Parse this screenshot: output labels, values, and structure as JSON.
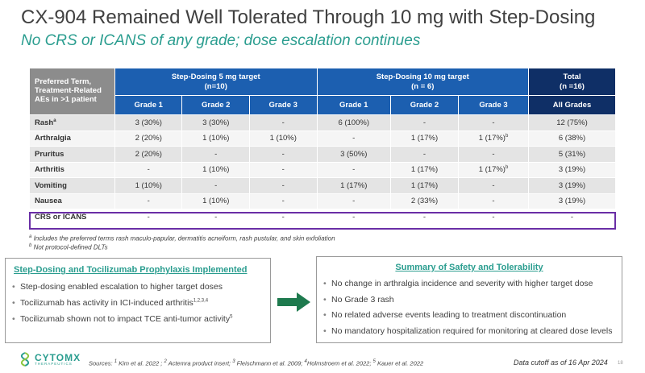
{
  "header": {
    "title": "CX-904 Remained Well Tolerated Through 10 mg with Step-Dosing",
    "subtitle": "No CRS or ICANS of any grade; dose escalation continues"
  },
  "table": {
    "corner": "Preferred Term, Treatment-Related AEs in >1 patient",
    "group1": {
      "line1": "Step-Dosing 5 mg target",
      "line2": "(n=10)"
    },
    "group2": {
      "line1": "Step-Dosing 10 mg target",
      "line2": "(n = 6)"
    },
    "total": {
      "line1": "Total",
      "line2": "(n =16)"
    },
    "grades": [
      "Grade 1",
      "Grade 2",
      "Grade 3",
      "Grade 1",
      "Grade 2",
      "Grade 3",
      "All Grades"
    ],
    "rows": [
      {
        "term": "Rash",
        "sup": "a",
        "cells": [
          "3 (30%)",
          "3 (30%)",
          "-",
          "6 (100%)",
          "-",
          "-",
          "12 (75%)"
        ]
      },
      {
        "term": "Arthralgia",
        "sup": "",
        "cells": [
          "2 (20%)",
          "1 (10%)",
          "1 (10%)",
          "-",
          "1 (17%)",
          "1 (17%)",
          "6 (38%)"
        ],
        "cell_sups": [
          "",
          "",
          "",
          "",
          "",
          "b",
          ""
        ]
      },
      {
        "term": "Pruritus",
        "sup": "",
        "cells": [
          "2 (20%)",
          "-",
          "-",
          "3 (50%)",
          "-",
          "-",
          "5 (31%)"
        ]
      },
      {
        "term": "Arthritis",
        "sup": "",
        "cells": [
          "-",
          "1 (10%)",
          "-",
          "-",
          "1 (17%)",
          "1 (17%)",
          "3 (19%)"
        ],
        "cell_sups": [
          "",
          "",
          "",
          "",
          "",
          "b",
          ""
        ]
      },
      {
        "term": "Vomiting",
        "sup": "",
        "cells": [
          "1 (10%)",
          "-",
          "-",
          "1 (17%)",
          "1 (17%)",
          "-",
          "3 (19%)"
        ]
      },
      {
        "term": "Nausea",
        "sup": "",
        "cells": [
          "-",
          "1 (10%)",
          "-",
          "-",
          "2 (33%)",
          "-",
          "3 (19%)"
        ]
      },
      {
        "term": "CRS or ICANS",
        "sup": "",
        "cells": [
          "-",
          "-",
          "-",
          "-",
          "-",
          "-",
          "-"
        ]
      }
    ]
  },
  "footnotes": {
    "a": "Includes the preferred terms rash maculo-papular, dermatitis acneiform, rash pustular, and skin exfoliation",
    "a_marker": "a",
    "b": "Not protocol-defined DLTs",
    "b_marker": "b"
  },
  "left_box": {
    "title": "Step-Dosing and Tocilizumab Prophylaxis Implemented",
    "bullet1": "Step-dosing enabled escalation to higher target doses",
    "bullet2": "Tocilizumab has activity in ICI-induced arthritis",
    "bullet2_sup": "1,2,3,4",
    "bullet3": "Tocilizumab shown not to impact TCE anti-tumor activity",
    "bullet3_sup": "5"
  },
  "right_box": {
    "title": "Summary of Safety and Tolerability",
    "bullets": [
      "No change in arthralgia incidence and severity with higher target dose",
      "No Grade 3 rash",
      "No related adverse events leading to treatment discontinuation",
      "No mandatory hospitalization required for monitoring at cleared dose levels"
    ]
  },
  "footer": {
    "logo_name": "CYTOMX",
    "logo_sub": "THERAPEUTICS",
    "sources_label": "Sources:",
    "sources": [
      {
        "sup": "1",
        "text": "Kim et al. 2022 ;"
      },
      {
        "sup": "2",
        "text": "Actemra product insert;"
      },
      {
        "sup": "3",
        "text": "Fleischmann et al. 2009;"
      },
      {
        "sup": "4",
        "text": "Holmstroem et al. 2022;"
      },
      {
        "sup": "5",
        "text": "Kauer et al. 2022"
      }
    ],
    "data_cutoff": "Data cutoff as of 16 Apr 2024",
    "page_number": "18"
  },
  "colors": {
    "header_blue": "#1c5fb0",
    "total_navy": "#0f2f66",
    "corner_gray": "#8c8c8c",
    "accent_teal": "#2a9d8f",
    "highlight_purple": "#6a2ea6",
    "arrow_green": "#1e7a4e"
  },
  "icons": {
    "arrow": "right-arrow-icon",
    "logo": "cytomx-logo-icon"
  }
}
